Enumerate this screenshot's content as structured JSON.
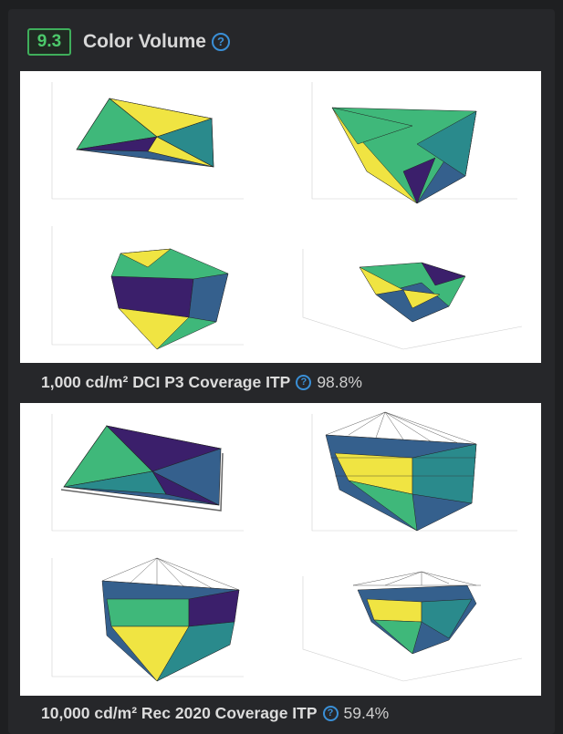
{
  "header": {
    "score": "9.3",
    "title": "Color Volume",
    "help_icon": "question-circle-icon"
  },
  "panels": [
    {
      "caption_label": "1,000 cd/m² DCI P3 Coverage ITP",
      "caption_value": "98.8%",
      "image_description_icon": "color-volume-plots"
    },
    {
      "caption_label": "10,000 cd/m² Rec 2020 Coverage ITP",
      "caption_value": "59.4%",
      "image_description_icon": "color-volume-plots"
    }
  ],
  "colors": {
    "badge_green": "#4cc96b",
    "help_blue": "#3a8fd6",
    "viridis_yellow": "#f0e442",
    "viridis_green": "#3fb87a",
    "viridis_teal": "#2a8a8c",
    "viridis_blue": "#35608d",
    "viridis_purple": "#3b1f6b"
  }
}
